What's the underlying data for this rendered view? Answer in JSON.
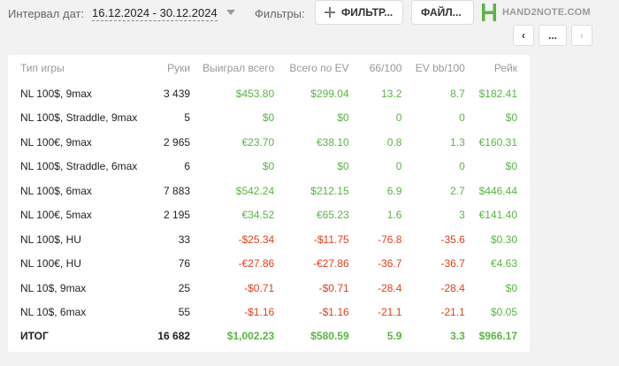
{
  "topbar": {
    "interval_label": "Интервал дат:",
    "interval_value": "16.12.2024 - 30.12.2024",
    "filters_label": "Фильтры:",
    "filter_button": "ФИЛЬТР...",
    "file_button": "ФАЙЛ...",
    "logo_text": "HAND2NOTE.COM"
  },
  "nav": {
    "prev": "‹",
    "more": "...",
    "next": "›"
  },
  "colors": {
    "positive": "#5ab445",
    "negative": "#e0401c",
    "logo": "#5ab445"
  },
  "table": {
    "headers": [
      "Тип игры",
      "Руки",
      "Выиграл всего",
      "Всего по EV",
      "66/100",
      "EV bb/100",
      "Рейк"
    ],
    "rows": [
      [
        "NL 100$, 9max",
        "3 439",
        "$453.80",
        "$299.04",
        "13.2",
        "8.7",
        "$182.41"
      ],
      [
        "NL 100$, Straddle, 9max",
        "5",
        "$0",
        "$0",
        "0",
        "0",
        "$0"
      ],
      [
        "NL 100€, 9max",
        "2 965",
        "€23.70",
        "€38.10",
        "0.8",
        "1.3",
        "€160.31"
      ],
      [
        "NL 100$, Straddle, 6max",
        "6",
        "$0",
        "$0",
        "0",
        "0",
        "$0"
      ],
      [
        "NL 100$, 6max",
        "7 883",
        "$542.24",
        "$212.15",
        "6.9",
        "2.7",
        "$446.44"
      ],
      [
        "NL 100€, 5max",
        "2 195",
        "€34.52",
        "€65.23",
        "1.6",
        "3",
        "€141.40"
      ],
      [
        "NL 100$, HU",
        "33",
        "-$25.34",
        "-$11.75",
        "-76.8",
        "-35.6",
        "$0.30"
      ],
      [
        "NL 100€, HU",
        "76",
        "-€27.86",
        "-€27.86",
        "-36.7",
        "-36.7",
        "€4.63"
      ],
      [
        "NL 10$, 9max",
        "25",
        "-$0.71",
        "-$0.71",
        "-28.4",
        "-28.4",
        "$0"
      ],
      [
        "NL 10$, 6max",
        "55",
        "-$1.16",
        "-$1.16",
        "-21.1",
        "-21.1",
        "$0.05"
      ]
    ],
    "total": [
      "ИТОГ",
      "16 682",
      "$1,002.23",
      "$580.59",
      "5.9",
      "3.3",
      "$966.17"
    ]
  }
}
